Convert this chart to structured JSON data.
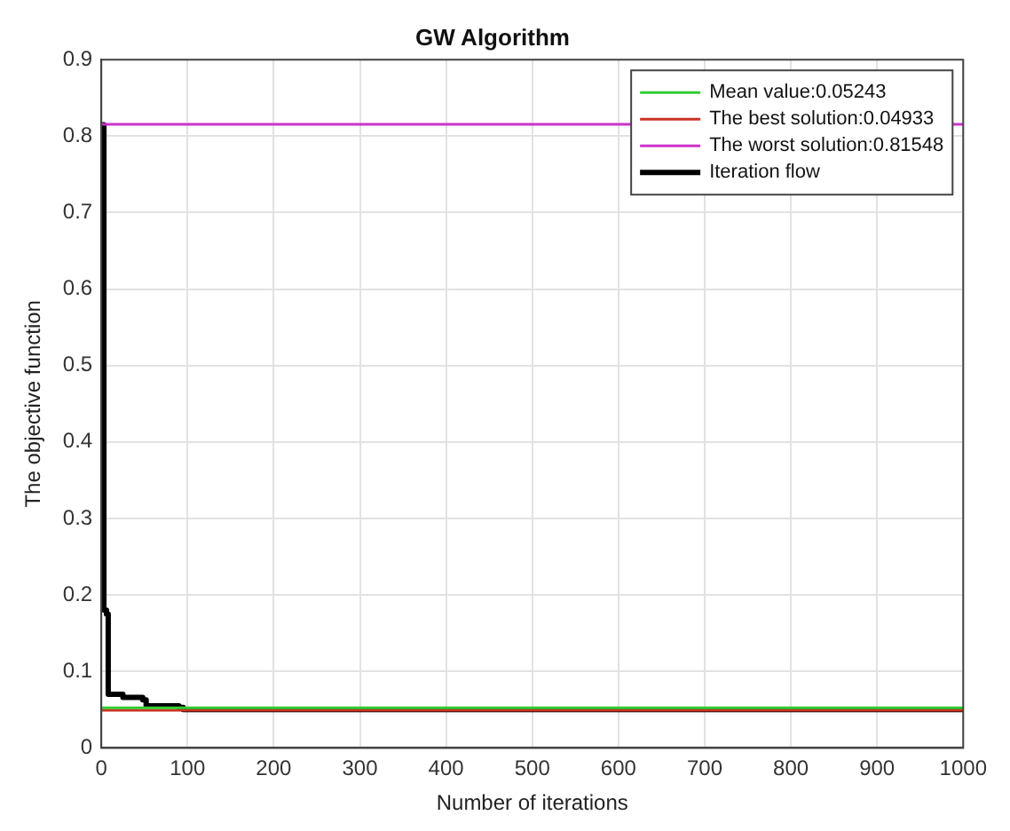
{
  "chart_data": {
    "type": "line",
    "title": "GW Algorithm",
    "xlabel": "Number of iterations",
    "ylabel": "The objective function",
    "xlim": [
      0,
      1000
    ],
    "xticks": [
      0,
      100,
      200,
      300,
      400,
      500,
      600,
      700,
      800,
      900,
      1000
    ],
    "ylim": [
      0,
      0.9
    ],
    "yticks": [
      0,
      0.1,
      0.2,
      0.3,
      0.4,
      0.5,
      0.6,
      0.7,
      0.8,
      0.9
    ],
    "grid": true,
    "legend": "top right",
    "marker": "none",
    "line_style": "solid",
    "series": [
      {
        "name": "Mean value:0.05243",
        "color": "#33cc33",
        "x": [
          0,
          1000
        ],
        "values": [
          0.05243,
          0.05243
        ]
      },
      {
        "name": "The best solution:0.04933",
        "color": "#cc3322",
        "x": [
          0,
          1000
        ],
        "values": [
          0.04933,
          0.04933
        ]
      },
      {
        "name": "The worst solution:0.81548",
        "color": "#cc33cc",
        "x": [
          0,
          1000
        ],
        "values": [
          0.81548,
          0.81548
        ]
      },
      {
        "name": "Iteration flow",
        "type": "step",
        "color": "#000000",
        "x": [
          1,
          3,
          6,
          8,
          25,
          48,
          52,
          90,
          95,
          1000
        ],
        "values": [
          0.815,
          0.18,
          0.175,
          0.07,
          0.066,
          0.063,
          0.055,
          0.053,
          0.05,
          0.049
        ]
      }
    ]
  }
}
